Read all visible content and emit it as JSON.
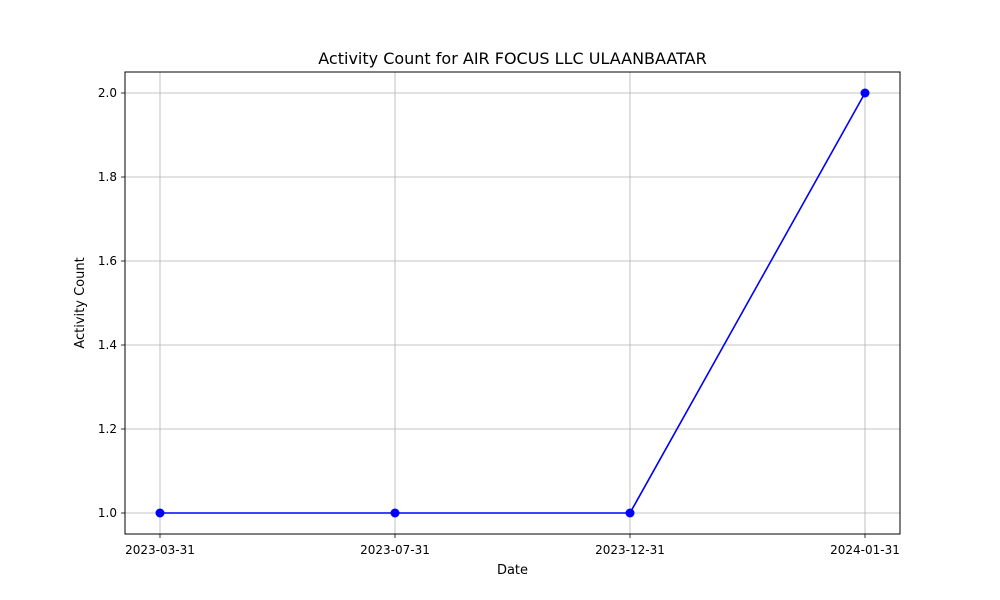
{
  "chart_data": {
    "type": "line",
    "title": "Activity Count for AIR FOCUS LLC ULAANBAATAR",
    "xlabel": "Date",
    "ylabel": "Activity Count",
    "categories": [
      "2023-03-31",
      "2023-07-31",
      "2023-12-31",
      "2024-01-31"
    ],
    "series": [
      {
        "values": [
          1.0,
          1.0,
          1.0,
          2.0
        ]
      }
    ],
    "yticks": [
      "1.0",
      "1.2",
      "1.4",
      "1.6",
      "1.8",
      "2.0"
    ],
    "ylim": [
      0.95,
      2.05
    ],
    "grid": true,
    "line_color": "#0000ff",
    "marker": "circle"
  }
}
